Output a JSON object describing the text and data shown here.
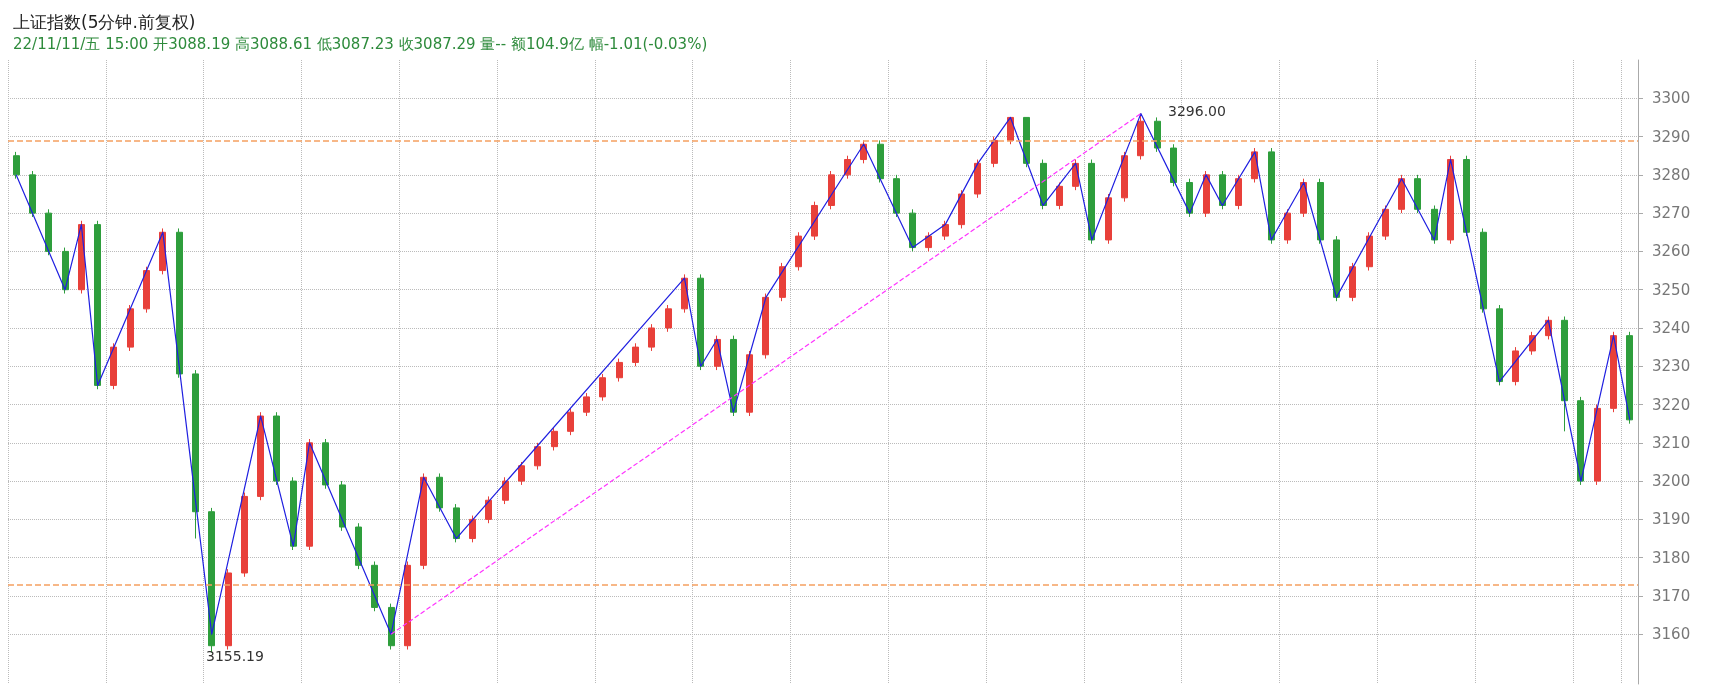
{
  "chart_data": {
    "type": "candlestick",
    "title": "上证指数(5分钟.前复权)",
    "subtitle": "22/11/11/五 15:00 开3088.19 高3088.61 低3087.23 收3087.29 量-- 额104.9亿 幅-1.01(-0.03%)",
    "categories": [
      null,
      null,
      null,
      null,
      null,
      null,
      null,
      null,
      null,
      null,
      null,
      null,
      null,
      null,
      null,
      null,
      null,
      null,
      null,
      null,
      null,
      null,
      null,
      null,
      null,
      null,
      null,
      null,
      null,
      null,
      null,
      null,
      null,
      null,
      null,
      null,
      null,
      null,
      null,
      null,
      null,
      null,
      null,
      null,
      null,
      null,
      null,
      null,
      null,
      null,
      null,
      null,
      null,
      null,
      null,
      null,
      null,
      null,
      null,
      null,
      null,
      null,
      null,
      null,
      null,
      null,
      null,
      null,
      null,
      null,
      null,
      null,
      null,
      null,
      null,
      null,
      null,
      null,
      null,
      null,
      null,
      null,
      null,
      null,
      null,
      null,
      null,
      null,
      null,
      null,
      null,
      null,
      null,
      null,
      null,
      null,
      null,
      null,
      null,
      null
    ],
    "series": [
      {
        "colors": [
          "#2e9e3c",
          "#2e9e3c",
          "#2e9e3c",
          "#2e9e3c",
          "#e8403a",
          "#2e9e3c",
          "#e8403a",
          "#e8403a",
          "#e8403a",
          "#e8403a",
          "#2e9e3c",
          "#2e9e3c",
          "#2e9e3c",
          "#e8403a",
          "#e8403a",
          "#e8403a",
          "#2e9e3c",
          "#2e9e3c",
          "#e8403a",
          "#2e9e3c",
          "#2e9e3c",
          "#2e9e3c",
          "#2e9e3c",
          "#2e9e3c",
          "#e8403a",
          "#e8403a",
          "#2e9e3c",
          "#2e9e3c",
          "#e8403a",
          "#e8403a",
          "#e8403a",
          "#e8403a",
          "#e8403a",
          "#e8403a",
          "#e8403a",
          "#e8403a",
          "#e8403a",
          "#e8403a",
          "#e8403a",
          "#e8403a",
          "#e8403a",
          "#e8403a",
          "#2e9e3c",
          "#e8403a",
          "#2e9e3c",
          "#e8403a",
          "#e8403a",
          "#e8403a",
          "#e8403a",
          "#e8403a",
          "#e8403a",
          "#e8403a",
          "#e8403a",
          "#2e9e3c",
          "#2e9e3c",
          "#2e9e3c",
          "#e8403a",
          "#e8403a",
          "#e8403a",
          "#e8403a",
          "#e8403a",
          "#e8403a",
          "#2e9e3c",
          "#2e9e3c",
          "#e8403a",
          "#e8403a",
          "#2e9e3c",
          "#e8403a",
          "#e8403a",
          "#e8403a",
          "#2e9e3c",
          "#2e9e3c",
          "#2e9e3c",
          "#e8403a",
          "#2e9e3c",
          "#e8403a",
          "#e8403a",
          "#2e9e3c",
          "#e8403a",
          "#e8403a",
          "#2e9e3c",
          "#2e9e3c",
          "#e8403a",
          "#e8403a",
          "#e8403a",
          "#e8403a",
          "#2e9e3c",
          "#2e9e3c",
          "#e8403a",
          "#2e9e3c",
          "#2e9e3c",
          "#2e9e3c",
          "#e8403a",
          "#e8403a",
          "#e8403a",
          "#2e9e3c",
          "#2e9e3c",
          "#e8403a",
          "#e8403a",
          "#2e9e3c"
        ],
        "ohlc": [
          [
            3285,
            3286,
            3279,
            3280
          ],
          [
            3280,
            3281,
            3269,
            3270
          ],
          [
            3270,
            3271,
            3259,
            3260
          ],
          [
            3260,
            3261,
            3249,
            3250
          ],
          [
            3250,
            3268,
            3249,
            3267
          ],
          [
            3267,
            3268,
            3224,
            3225
          ],
          [
            3225,
            3236,
            3224,
            3235
          ],
          [
            3235,
            3246,
            3234,
            3245
          ],
          [
            3245,
            3256,
            3244,
            3255
          ],
          [
            3255,
            3266,
            3254,
            3265
          ],
          [
            3265,
            3266,
            3227,
            3228
          ],
          [
            3228,
            3229,
            3185,
            3192
          ],
          [
            3192,
            3193,
            3155.19,
            3157
          ],
          [
            3157,
            3177,
            3156,
            3176
          ],
          [
            3176,
            3197,
            3175,
            3196
          ],
          [
            3196,
            3218,
            3195,
            3217
          ],
          [
            3217,
            3218,
            3199,
            3200
          ],
          [
            3200,
            3201,
            3182,
            3183
          ],
          [
            3183,
            3211,
            3182,
            3210
          ],
          [
            3210,
            3211,
            3198,
            3199
          ],
          [
            3199,
            3200,
            3187,
            3188
          ],
          [
            3188,
            3189,
            3177,
            3178
          ],
          [
            3178,
            3179,
            3166,
            3167
          ],
          [
            3167,
            3168,
            3156,
            3157
          ],
          [
            3157,
            3179,
            3156,
            3178
          ],
          [
            3178,
            3202,
            3177,
            3201
          ],
          [
            3201,
            3202,
            3192,
            3193
          ],
          [
            3193,
            3194,
            3184,
            3185
          ],
          [
            3185,
            3191,
            3184,
            3190
          ],
          [
            3190,
            3196,
            3189,
            3195
          ],
          [
            3195,
            3201,
            3194,
            3200
          ],
          [
            3200,
            3205,
            3199,
            3204
          ],
          [
            3204,
            3210,
            3203,
            3209
          ],
          [
            3209,
            3214,
            3208,
            3213
          ],
          [
            3213,
            3219,
            3212,
            3218
          ],
          [
            3218,
            3223,
            3217,
            3222
          ],
          [
            3222,
            3228,
            3221,
            3227
          ],
          [
            3227,
            3232,
            3226,
            3231
          ],
          [
            3231,
            3236,
            3230,
            3235
          ],
          [
            3235,
            3241,
            3234,
            3240
          ],
          [
            3240,
            3246,
            3239,
            3245
          ],
          [
            3245,
            3254,
            3244,
            3253
          ],
          [
            3253,
            3254,
            3229,
            3230
          ],
          [
            3230,
            3238,
            3229,
            3237
          ],
          [
            3237,
            3238,
            3217,
            3218
          ],
          [
            3218,
            3234,
            3217,
            3233
          ],
          [
            3233,
            3249,
            3232,
            3248
          ],
          [
            3248,
            3257,
            3247,
            3256
          ],
          [
            3256,
            3265,
            3255,
            3264
          ],
          [
            3264,
            3273,
            3263,
            3272
          ],
          [
            3272,
            3281,
            3271,
            3280
          ],
          [
            3280,
            3285,
            3279,
            3284
          ],
          [
            3284,
            3289,
            3283,
            3288
          ],
          [
            3288,
            3289,
            3278,
            3279
          ],
          [
            3279,
            3280,
            3269,
            3270
          ],
          [
            3270,
            3271,
            3260,
            3261
          ],
          [
            3261,
            3265,
            3260,
            3264
          ],
          [
            3264,
            3268,
            3263,
            3267
          ],
          [
            3267,
            3276,
            3266,
            3275
          ],
          [
            3275,
            3284,
            3274,
            3283
          ],
          [
            3283,
            3290,
            3282,
            3289
          ],
          [
            3289,
            3295,
            3288,
            3295
          ],
          [
            3295,
            3295,
            3282,
            3283
          ],
          [
            3283,
            3284,
            3271,
            3272
          ],
          [
            3272,
            3278,
            3271,
            3277
          ],
          [
            3277,
            3284,
            3276,
            3283
          ],
          [
            3283,
            3284,
            3262,
            3263
          ],
          [
            3263,
            3275,
            3262,
            3274
          ],
          [
            3274,
            3286,
            3273,
            3285
          ],
          [
            3285,
            3296,
            3284,
            3294
          ],
          [
            3294,
            3295,
            3286,
            3287
          ],
          [
            3287,
            3288,
            3277,
            3278
          ],
          [
            3278,
            3279,
            3269,
            3270
          ],
          [
            3270,
            3281,
            3269,
            3280
          ],
          [
            3280,
            3281,
            3271,
            3272
          ],
          [
            3272,
            3280,
            3271,
            3279
          ],
          [
            3279,
            3287,
            3278,
            3286
          ],
          [
            3286,
            3287,
            3262,
            3263
          ],
          [
            3263,
            3271,
            3262,
            3270
          ],
          [
            3270,
            3279,
            3269,
            3278
          ],
          [
            3278,
            3279,
            3262,
            3263
          ],
          [
            3263,
            3264,
            3247,
            3248
          ],
          [
            3248,
            3257,
            3247,
            3256
          ],
          [
            3256,
            3265,
            3255,
            3264
          ],
          [
            3264,
            3272,
            3263,
            3271
          ],
          [
            3271,
            3280,
            3270,
            3279
          ],
          [
            3279,
            3280,
            3270,
            3271
          ],
          [
            3271,
            3272,
            3262,
            3263
          ],
          [
            3263,
            3285,
            3262,
            3284
          ],
          [
            3284,
            3285,
            3264,
            3265
          ],
          [
            3265,
            3266,
            3244,
            3245
          ],
          [
            3245,
            3246,
            3225,
            3226
          ],
          [
            3226,
            3235,
            3225,
            3234
          ],
          [
            3234,
            3239,
            3233,
            3238
          ],
          [
            3238,
            3243,
            3237,
            3242
          ],
          [
            3242,
            3243,
            3213,
            3221
          ],
          [
            3221,
            3222,
            3199,
            3200
          ],
          [
            3200,
            3220,
            3199,
            3219
          ],
          [
            3219,
            3239,
            3218,
            3238
          ],
          [
            3238,
            3239,
            3215,
            3216
          ]
        ]
      },
      {
        "type": "line",
        "color": "#1f1fe0",
        "values": [
          3280,
          null,
          null,
          3250,
          3267,
          3225,
          null,
          null,
          null,
          3265,
          null,
          null,
          3160,
          null,
          null,
          3217,
          null,
          3183,
          3210,
          null,
          null,
          null,
          null,
          3160,
          null,
          3201,
          null,
          3185,
          null,
          null,
          null,
          null,
          null,
          null,
          null,
          null,
          null,
          null,
          null,
          null,
          null,
          3253,
          3230,
          3237,
          3218,
          null,
          3248,
          null,
          null,
          null,
          null,
          null,
          3288,
          null,
          null,
          3261,
          null,
          3267,
          null,
          3283,
          null,
          3295,
          null,
          3272,
          null,
          3283,
          3263,
          null,
          null,
          3296,
          null,
          null,
          3270,
          3280,
          3272,
          null,
          3286,
          3263,
          null,
          3278,
          null,
          3248,
          null,
          null,
          null,
          3279,
          null,
          3263,
          3284,
          null,
          null,
          3226,
          null,
          null,
          3242,
          null,
          3200,
          null,
          3238,
          3216
        ]
      },
      {
        "type": "line",
        "color": "#ff33ff",
        "line_style": "dashed",
        "values": [
          null,
          null,
          null,
          null,
          null,
          null,
          null,
          null,
          null,
          null,
          null,
          null,
          null,
          null,
          null,
          null,
          null,
          null,
          null,
          null,
          null,
          null,
          null,
          3160,
          null,
          null,
          null,
          null,
          null,
          null,
          null,
          null,
          null,
          null,
          null,
          null,
          null,
          null,
          null,
          null,
          null,
          null,
          null,
          null,
          null,
          null,
          null,
          null,
          null,
          null,
          null,
          null,
          null,
          null,
          null,
          null,
          null,
          null,
          null,
          null,
          null,
          null,
          null,
          null,
          null,
          null,
          null,
          null,
          null,
          3296,
          null,
          null,
          null,
          null,
          null,
          null,
          null,
          null,
          null,
          null,
          null,
          null,
          null,
          null,
          null,
          null,
          null,
          null,
          null,
          null,
          null,
          null,
          null,
          null,
          null,
          null,
          null,
          null,
          null,
          null
        ]
      }
    ],
    "ylim": [
      3147,
      3310
    ],
    "yticks": [
      3160,
      3170,
      3180,
      3190,
      3200,
      3210,
      3220,
      3230,
      3240,
      3250,
      3260,
      3270,
      3280,
      3290,
      3300
    ],
    "tick_labels": "y",
    "grid": true,
    "ref_lines": [
      {
        "axis": "y",
        "value": 3289,
        "color": "#f5a060",
        "line_style": "dashed"
      },
      {
        "axis": "y",
        "value": 3173,
        "color": "#f5a060",
        "line_style": "dashed"
      }
    ],
    "annotations": [
      "3155.19",
      "3296.00"
    ]
  }
}
